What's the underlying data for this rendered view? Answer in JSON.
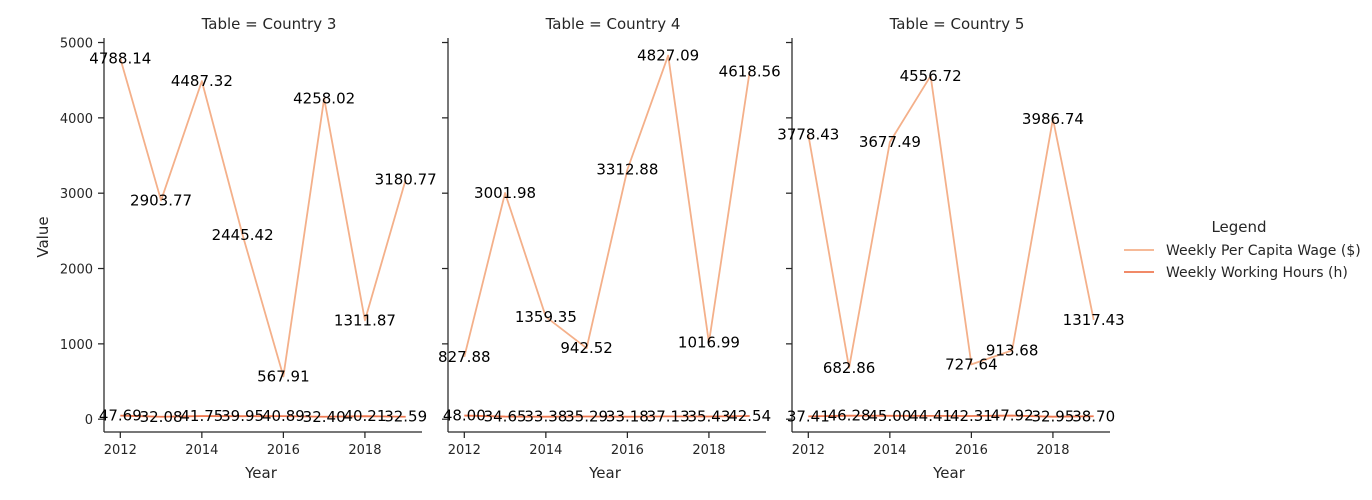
{
  "chart_data": {
    "type": "line",
    "ylabel": "Value",
    "xlabel": "Year",
    "xlim": [
      2011.6,
      2019.4
    ],
    "ylim": [
      -170,
      5060
    ],
    "x_ticks": [
      2012,
      2014,
      2016,
      2018
    ],
    "y_ticks": [
      0,
      1000,
      2000,
      3000,
      4000,
      5000
    ],
    "legend": {
      "title": "Legend",
      "placement": "right",
      "entries": [
        "Weekly Per Capita Wage ($)",
        "Weekly Working Hours (h)"
      ]
    },
    "colors": {
      "Weekly Per Capita Wage ($)": "#f4b08a",
      "Weekly Working Hours (h)": "#ef7a52"
    },
    "x": [
      2012,
      2013,
      2014,
      2015,
      2016,
      2017,
      2018,
      2019
    ],
    "panels": [
      {
        "title": "Table = Country 3",
        "series": [
          {
            "name": "Weekly Per Capita Wage ($)",
            "values": [
              4788.14,
              2903.77,
              4487.32,
              2445.42,
              567.91,
              4258.02,
              1311.87,
              3180.77
            ]
          },
          {
            "name": "Weekly Working Hours (h)",
            "values": [
              47.69,
              32.08,
              41.75,
              39.95,
              40.89,
              32.4,
              40.21,
              32.59
            ]
          }
        ]
      },
      {
        "title": "Table = Country 4",
        "series": [
          {
            "name": "Weekly Per Capita Wage ($)",
            "values": [
              827.88,
              3001.98,
              1359.35,
              942.52,
              3312.88,
              4827.09,
              1016.99,
              4618.56
            ]
          },
          {
            "name": "Weekly Working Hours (h)",
            "values": [
              48.0,
              34.65,
              33.38,
              35.29,
              33.18,
              37.13,
              35.43,
              42.54
            ]
          }
        ]
      },
      {
        "title": "Table = Country 5",
        "series": [
          {
            "name": "Weekly Per Capita Wage ($)",
            "values": [
              3778.43,
              682.86,
              3677.49,
              4556.72,
              727.64,
              913.68,
              3986.74,
              1317.43
            ]
          },
          {
            "name": "Weekly Working Hours (h)",
            "values": [
              37.41,
              46.28,
              45.0,
              44.41,
              42.31,
              47.92,
              32.95,
              38.7
            ]
          }
        ]
      }
    ]
  }
}
